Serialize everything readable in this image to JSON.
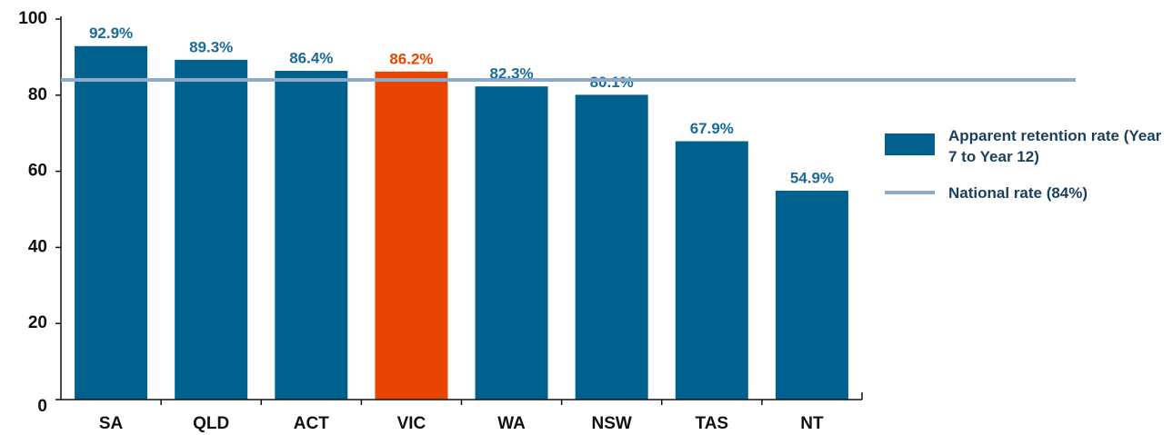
{
  "chart_data": {
    "type": "bar",
    "categories": [
      "SA",
      "QLD",
      "ACT",
      "VIC",
      "WA",
      "NSW",
      "TAS",
      "NT"
    ],
    "series": [
      {
        "name": "Apparent retention rate (Year 7 to Year 12)",
        "color": "#00618f",
        "colors": [
          "#00618f",
          "#00618f",
          "#00618f",
          "#e84500",
          "#00618f",
          "#00618f",
          "#00618f",
          "#00618f"
        ],
        "values": [
          92.9,
          89.3,
          86.4,
          86.2,
          82.3,
          80.1,
          67.9,
          54.9
        ],
        "value_labels": [
          "92.9%",
          "89.3%",
          "86.4%",
          "86.2%",
          "82.3%",
          "80.1%",
          "67.9%",
          "54.9%"
        ]
      }
    ],
    "reference_line": {
      "name": "National rate (84%)",
      "value": 84,
      "color": "#8eaacb"
    },
    "ylim": [
      0,
      100
    ],
    "yticks": [
      0,
      20,
      40,
      60,
      80,
      100
    ]
  }
}
